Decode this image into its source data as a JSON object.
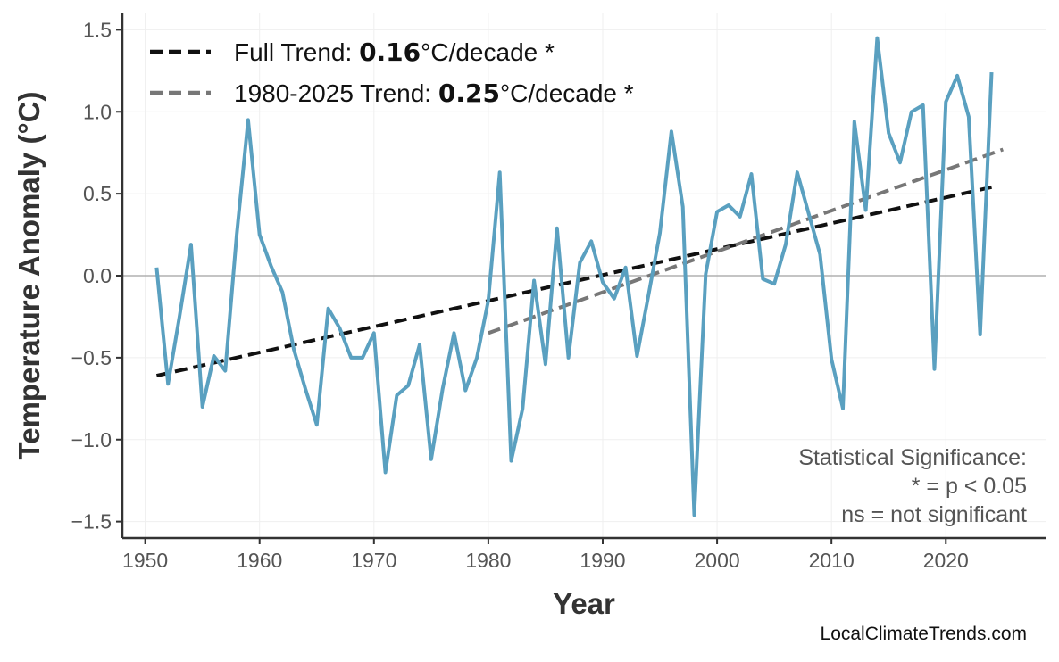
{
  "chart_data": {
    "type": "line",
    "title": "",
    "xlabel": "Year",
    "ylabel": "Temperature Anomaly (°C)",
    "xlim": [
      1948,
      2028.8
    ],
    "ylim": [
      -1.6,
      1.6
    ],
    "xticks": [
      1950,
      1960,
      1970,
      1980,
      1990,
      2000,
      2010,
      2020
    ],
    "yticks": [
      1.5,
      1.0,
      0.5,
      0.0,
      -0.5,
      -1.0,
      -1.5
    ],
    "ytick_labels": [
      "1.5",
      "1.0",
      "0.5",
      "0.0",
      "−0.5",
      "−1.0",
      "−1.5"
    ],
    "grid": true,
    "zero_line": true,
    "series_color": "#5aa0c0",
    "x": [
      1951,
      1952,
      1953,
      1954,
      1955,
      1956,
      1957,
      1958,
      1959,
      1960,
      1961,
      1962,
      1963,
      1964,
      1965,
      1966,
      1967,
      1968,
      1969,
      1970,
      1971,
      1972,
      1973,
      1974,
      1975,
      1976,
      1977,
      1978,
      1979,
      1980,
      1981,
      1982,
      1983,
      1984,
      1985,
      1986,
      1987,
      1988,
      1989,
      1990,
      1991,
      1992,
      1993,
      1994,
      1995,
      1996,
      1997,
      1998,
      1999,
      2000,
      2001,
      2002,
      2003,
      2004,
      2005,
      2006,
      2007,
      2008,
      2009,
      2010,
      2011,
      2012,
      2013,
      2014,
      2015,
      2016,
      2017,
      2018,
      2019,
      2020,
      2021,
      2022,
      2023,
      2024
    ],
    "values": [
      0.05,
      -0.66,
      -0.25,
      0.19,
      -0.8,
      -0.49,
      -0.58,
      0.25,
      0.95,
      0.25,
      0.06,
      -0.1,
      -0.45,
      -0.69,
      -0.91,
      -0.2,
      -0.32,
      -0.5,
      -0.5,
      -0.35,
      -1.2,
      -0.73,
      -0.67,
      -0.42,
      -1.12,
      -0.69,
      -0.35,
      -0.7,
      -0.5,
      -0.15,
      0.63,
      -1.13,
      -0.81,
      -0.03,
      -0.54,
      0.29,
      -0.5,
      0.08,
      0.21,
      -0.04,
      -0.14,
      0.05,
      -0.49,
      -0.12,
      0.26,
      0.88,
      0.42,
      -1.46,
      0.01,
      0.39,
      0.43,
      0.36,
      0.62,
      -0.02,
      -0.05,
      0.19,
      0.63,
      0.38,
      0.13,
      -0.51,
      -0.81,
      0.94,
      0.4,
      1.45,
      0.87,
      0.69,
      1.0,
      1.04,
      -0.57,
      1.06,
      1.22,
      0.97,
      -0.36,
      1.24
    ],
    "trends": [
      {
        "label_prefix": "Full Trend: ",
        "rate": "0.16",
        "label_suffix": "°C/decade *",
        "x": [
          1951,
          2024
        ],
        "y": [
          -0.61,
          0.54
        ],
        "color": "#111111"
      },
      {
        "label_prefix": "1980-2025 Trend: ",
        "rate": "0.25",
        "label_suffix": "°C/decade *",
        "x": [
          1980,
          2025
        ],
        "y": [
          -0.35,
          0.77
        ],
        "color": "#777777"
      }
    ],
    "legend_position": "top-left",
    "annotation": [
      "Statistical Significance:",
      "* = p < 0.05",
      "ns = not significant"
    ],
    "watermark": "LocalClimateTrends.com"
  }
}
